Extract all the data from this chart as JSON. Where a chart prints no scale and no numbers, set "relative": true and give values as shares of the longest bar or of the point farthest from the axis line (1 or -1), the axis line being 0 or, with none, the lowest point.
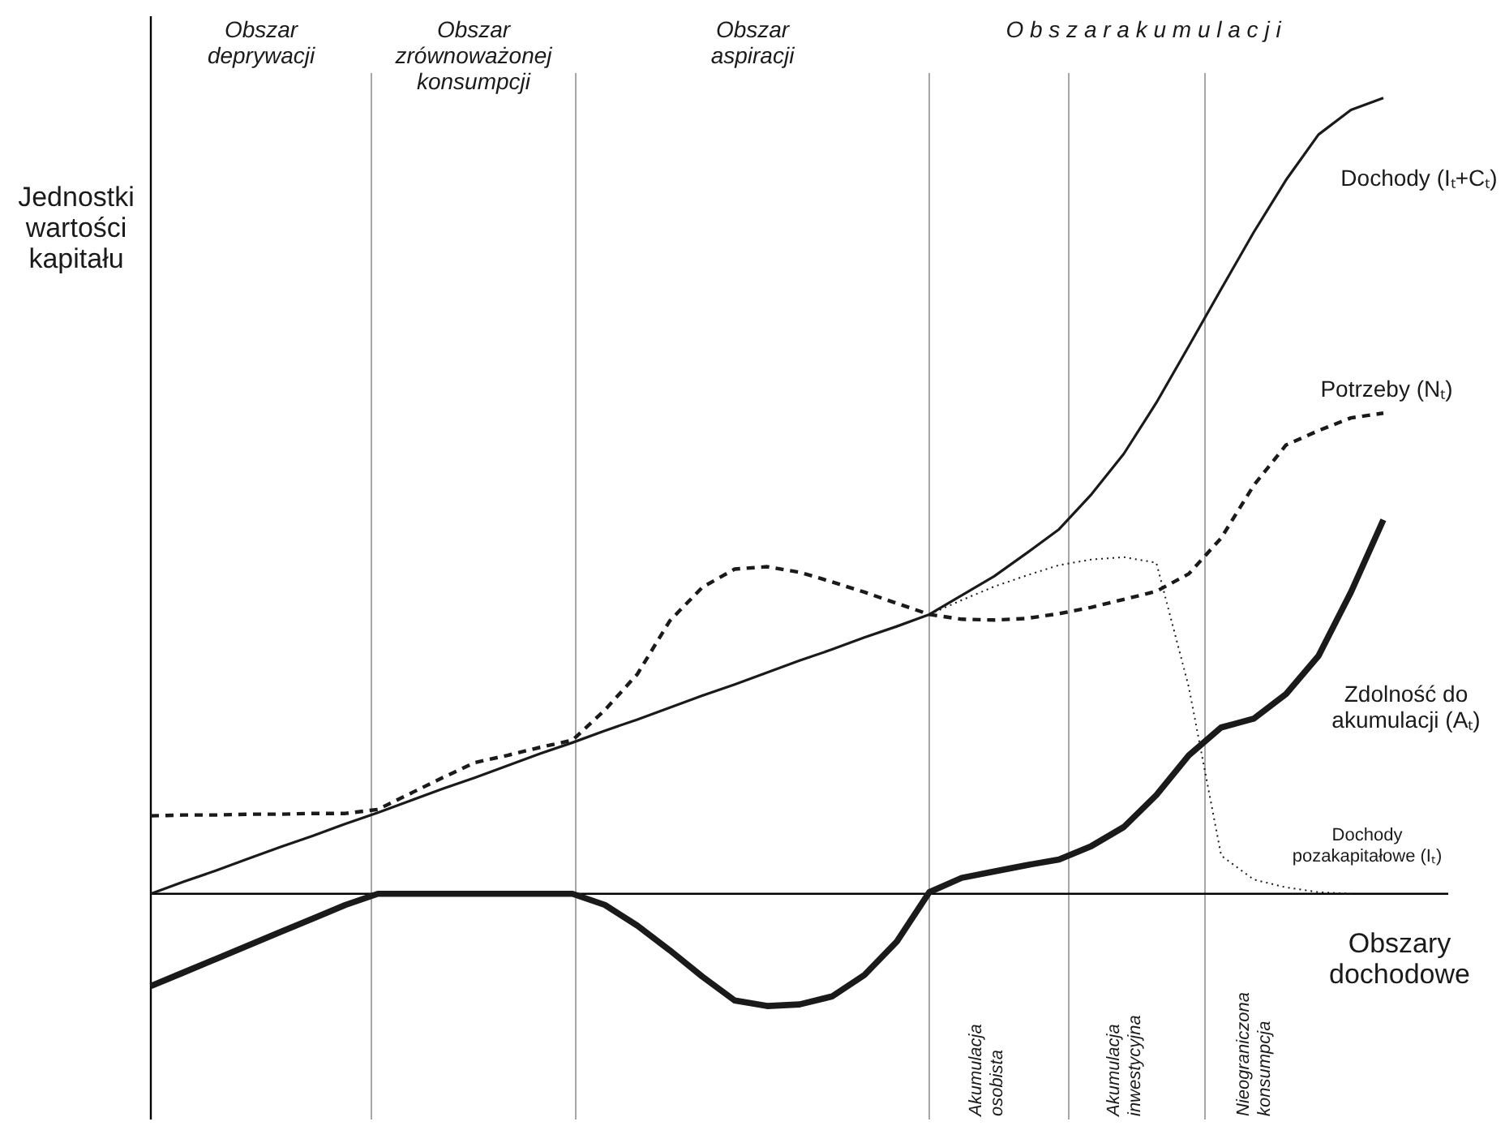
{
  "chart_data": {
    "type": "line",
    "relative": true,
    "xlabel": "Obszary\ndochodowe",
    "ylabel": "Jednostki\nwartości\nkapitału",
    "marker": "none",
    "categories": [
      null,
      null,
      null,
      null,
      null,
      null,
      null,
      null,
      null,
      null,
      null,
      null,
      null,
      null,
      null,
      null,
      null,
      null,
      null,
      null,
      null,
      null,
      null,
      null,
      null,
      null,
      null,
      null,
      null,
      null,
      null,
      null,
      null,
      null,
      null,
      null,
      null,
      null,
      null,
      null,
      null
    ],
    "series": [
      {
        "name": "Dochody (Iₜ+Cₜ)",
        "color": "#1a1a1a",
        "line_style": "solid",
        "values": [
          0,
          0.015,
          0.029,
          0.044,
          0.059,
          0.073,
          0.088,
          0.102,
          0.117,
          0.132,
          0.146,
          0.161,
          0.176,
          0.19,
          0.205,
          0.219,
          0.234,
          0.249,
          0.263,
          0.278,
          0.293,
          0.307,
          0.322,
          0.336,
          0.351,
          0.375,
          0.399,
          0.428,
          0.458,
          0.502,
          0.553,
          0.617,
          0.688,
          0.76,
          0.831,
          0.897,
          0.954,
          0.985,
          1,
          null,
          null
        ]
      },
      {
        "name": "Potrzeby (Nₜ)",
        "color": "#1a1a1a",
        "line_style": "dashed",
        "values": [
          0.098,
          0.099,
          0.099,
          0.1,
          0.1,
          0.101,
          0.101,
          0.106,
          0.126,
          0.146,
          0.165,
          0.174,
          0.184,
          0.193,
          0.231,
          0.276,
          0.343,
          0.385,
          0.408,
          0.411,
          0.404,
          0.392,
          0.379,
          0.365,
          0.351,
          0.345,
          0.344,
          0.346,
          0.352,
          0.36,
          0.37,
          0.38,
          0.402,
          0.447,
          0.513,
          0.564,
          0.582,
          0.598,
          0.604,
          null,
          null
        ]
      },
      {
        "name": "Zdolność do\nakumulacji (Aₜ)",
        "color": "#1a1a1a",
        "line_style": "solid",
        "values": [
          -0.116,
          -0.099,
          -0.082,
          -0.065,
          -0.048,
          -0.031,
          -0.014,
          0,
          0,
          0,
          0,
          0,
          0,
          0,
          -0.014,
          -0.04,
          -0.071,
          -0.104,
          -0.134,
          -0.141,
          -0.139,
          -0.129,
          -0.102,
          -0.06,
          0.002,
          0.02,
          0.028,
          0.036,
          0.043,
          0.06,
          0.084,
          0.124,
          0.174,
          0.209,
          0.22,
          0.251,
          0.299,
          0.379,
          0.47,
          null,
          null
        ]
      },
      {
        "name": "Dochody\npozakapitałowe (Iₜ)",
        "color": "#1a1a1a",
        "line_style": "dotted",
        "values": [
          null,
          null,
          null,
          null,
          null,
          null,
          null,
          null,
          null,
          null,
          null,
          null,
          null,
          null,
          null,
          null,
          null,
          null,
          null,
          null,
          null,
          null,
          null,
          null,
          0.351,
          0.369,
          0.386,
          0.4,
          0.413,
          0.42,
          0.423,
          0.416,
          0.26,
          0.048,
          0.018,
          0.008,
          0.002,
          0,
          null,
          null,
          null
        ]
      }
    ],
    "annotations": [
      "Obszar\ndeprywacji",
      "Obszar\nzrównoważonej\nkonsumpcji",
      "Obszar\naspiracji",
      "O b s z a r      a k u m u l a c j i",
      "Akumulacja\nosobista",
      "Akumulacja\ninwestycyjna",
      "Nieograniczona\nkonsumpcja"
    ]
  }
}
